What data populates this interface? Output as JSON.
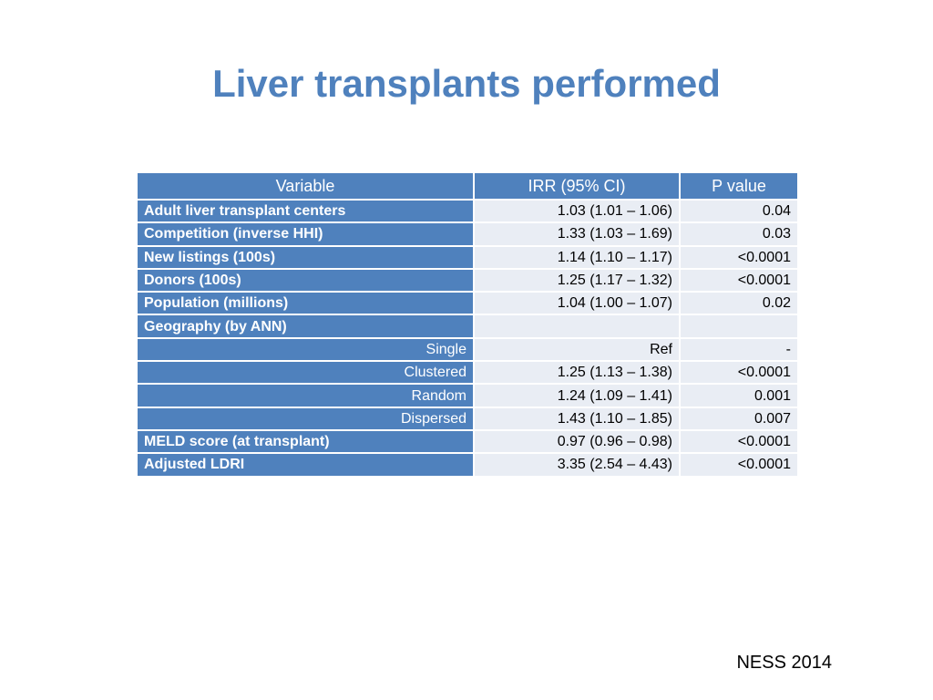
{
  "slide": {
    "title": "Liver transplants performed",
    "footer": "NESS 2014"
  },
  "table": {
    "headers": [
      "Variable",
      "IRR (95% CI)",
      "P value"
    ],
    "rows": [
      {
        "variable": "Adult liver transplant centers",
        "irr": "1.03 (1.01 – 1.06)",
        "p": "0.04",
        "sub": false
      },
      {
        "variable": "Competition (inverse HHI)",
        "irr": "1.33 (1.03 – 1.69)",
        "p": "0.03",
        "sub": false
      },
      {
        "variable": "New listings (100s)",
        "irr": "1.14 (1.10 – 1.17)",
        "p": "<0.0001",
        "sub": false
      },
      {
        "variable": "Donors (100s)",
        "irr": "1.25 (1.17 – 1.32)",
        "p": "<0.0001",
        "sub": false
      },
      {
        "variable": "Population (millions)",
        "irr": "1.04 (1.00 – 1.07)",
        "p": "0.02",
        "sub": false
      },
      {
        "variable": "Geography (by ANN)",
        "irr": "",
        "p": "",
        "sub": false
      },
      {
        "variable": "Single",
        "irr": "Ref",
        "p": "-",
        "sub": true
      },
      {
        "variable": "Clustered",
        "irr": "1.25 (1.13 – 1.38)",
        "p": "<0.0001",
        "sub": true
      },
      {
        "variable": "Random",
        "irr": "1.24 (1.09 – 1.41)",
        "p": "0.001",
        "sub": true
      },
      {
        "variable": "Dispersed",
        "irr": "1.43 (1.10 – 1.85)",
        "p": "0.007",
        "sub": true
      },
      {
        "variable": "MELD score (at transplant)",
        "irr": "0.97 (0.96 – 0.98)",
        "p": "<0.0001",
        "sub": false
      },
      {
        "variable": "Adjusted LDRI",
        "irr": "3.35 (2.54 – 4.43)",
        "p": "<0.0001",
        "sub": false
      }
    ]
  },
  "colors": {
    "title": "#4f81bd",
    "header_bg": "#4f81bd",
    "cell_bg": "#e9edf4"
  }
}
